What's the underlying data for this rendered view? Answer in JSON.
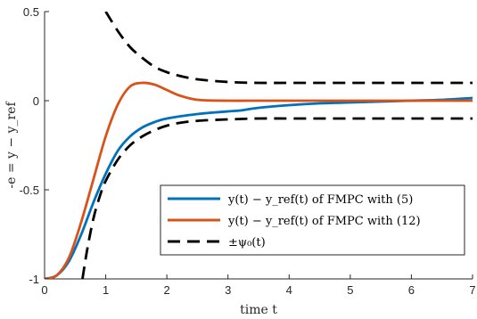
{
  "chart_data": {
    "type": "line",
    "xlabel": "time t",
    "ylabel": "-e = y − y_ref",
    "xlim": [
      0,
      7
    ],
    "ylim": [
      -1,
      0.5
    ],
    "x_ticks": [
      "0",
      "1",
      "2",
      "3",
      "4",
      "5",
      "6",
      "7"
    ],
    "y_ticks": [
      "-1",
      "-0.5",
      "0",
      "0.5"
    ],
    "grid": false,
    "legend_position": "bottom-right",
    "series": [
      {
        "name": "y(t) − y_ref(t) of FMPC with (5)",
        "color": "#0072BD",
        "style": "solid",
        "x": [
          0,
          0.2,
          0.4,
          0.6,
          0.8,
          1.0,
          1.2,
          1.4,
          1.6,
          1.8,
          2.0,
          2.5,
          3.0,
          3.2,
          3.5,
          4.0,
          4.5,
          5.0,
          5.5,
          6.0,
          6.5,
          7.0
        ],
        "y": [
          -1.0,
          -0.98,
          -0.9,
          -0.75,
          -0.57,
          -0.41,
          -0.28,
          -0.2,
          -0.15,
          -0.12,
          -0.1,
          -0.075,
          -0.06,
          -0.055,
          -0.04,
          -0.025,
          -0.015,
          -0.01,
          -0.005,
          0.0,
          0.005,
          0.015
        ]
      },
      {
        "name": "y(t) − y_ref(t) of FMPC with (12)",
        "color": "#D95319",
        "style": "solid",
        "x": [
          0,
          0.2,
          0.4,
          0.6,
          0.8,
          1.0,
          1.2,
          1.4,
          1.6,
          1.8,
          2.0,
          2.2,
          2.5,
          3.0,
          3.5,
          4.0,
          5.0,
          6.0,
          7.0
        ],
        "y": [
          -1.0,
          -0.98,
          -0.88,
          -0.68,
          -0.44,
          -0.2,
          -0.02,
          0.08,
          0.1,
          0.09,
          0.06,
          0.03,
          0.005,
          0.0,
          0.0,
          0.0,
          0.0,
          0.0,
          0.0
        ]
      },
      {
        "name": "±ψ₀(t)",
        "color": "#000000",
        "style": "dashed",
        "band": true,
        "x": [
          1.0,
          1.2,
          1.4,
          1.6,
          1.8,
          2.0,
          2.2,
          2.5,
          3.0,
          3.5,
          4.0,
          5.0,
          6.0,
          7.0
        ],
        "y": [
          0.5,
          0.39,
          0.3,
          0.24,
          0.19,
          0.16,
          0.14,
          0.12,
          0.105,
          0.1,
          0.1,
          0.1,
          0.1,
          0.1
        ],
        "lower_x": [
          0.62,
          0.7,
          0.8,
          0.9,
          1.0,
          1.2,
          1.4,
          1.6,
          1.8,
          2.0,
          2.2,
          2.5,
          3.0,
          3.5,
          4.0,
          5.0,
          6.0,
          7.0
        ],
        "lower_y": [
          -1.0,
          -0.83,
          -0.66,
          -0.54,
          -0.45,
          -0.33,
          -0.25,
          -0.2,
          -0.165,
          -0.14,
          -0.125,
          -0.113,
          -0.105,
          -0.1,
          -0.1,
          -0.1,
          -0.1,
          -0.1
        ]
      }
    ]
  }
}
